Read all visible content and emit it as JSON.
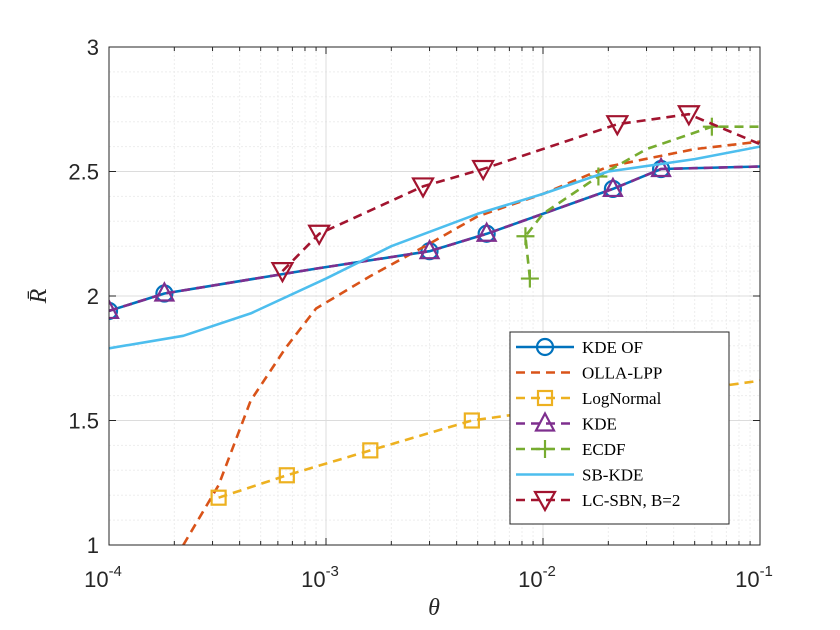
{
  "chart_data": {
    "type": "line",
    "xscale": "log",
    "xlabel": "θ",
    "ylabel": "R̄",
    "xlim": [
      0.0001,
      0.1
    ],
    "ylim": [
      1,
      3
    ],
    "grid": "on",
    "legend_position": "bottom-right",
    "x_tick_labels": [
      {
        "value": 0.0001,
        "base": "10",
        "exponent": "-4"
      },
      {
        "value": 0.001,
        "base": "10",
        "exponent": "-3"
      },
      {
        "value": 0.01,
        "base": "10",
        "exponent": "-2"
      },
      {
        "value": 0.1,
        "base": "10",
        "exponent": "-1"
      }
    ],
    "y_tick_labels": [
      {
        "value": 1,
        "label": "1"
      },
      {
        "value": 1.5,
        "label": "1.5"
      },
      {
        "value": 2,
        "label": "2"
      },
      {
        "value": 2.5,
        "label": "2.5"
      },
      {
        "value": 3,
        "label": "3"
      }
    ],
    "series": [
      {
        "name": "KDE OF",
        "color": "#0072BD",
        "marker": "circle",
        "dash": "solid",
        "line_x": [
          0.0001,
          0.00018,
          0.0009,
          0.003,
          0.0055,
          0.021,
          0.035,
          0.1
        ],
        "line_y": [
          1.94,
          2.01,
          2.11,
          2.18,
          2.25,
          2.43,
          2.51,
          2.52
        ],
        "marker_x": [
          0.0001,
          0.00018,
          0.003,
          0.0055,
          0.021,
          0.035
        ],
        "marker_y": [
          1.94,
          2.01,
          2.18,
          2.25,
          2.43,
          2.51
        ]
      },
      {
        "name": "OLLA-LPP",
        "color": "#D95319",
        "marker": "none",
        "dash": "dashed",
        "line_x": [
          0.00022,
          0.00032,
          0.00045,
          0.00065,
          0.0009,
          0.0016,
          0.003,
          0.005,
          0.01,
          0.02,
          0.05,
          0.1
        ],
        "line_y": [
          1.0,
          1.24,
          1.58,
          1.79,
          1.95,
          2.08,
          2.21,
          2.32,
          2.41,
          2.52,
          2.59,
          2.62
        ],
        "marker_x": [],
        "marker_y": []
      },
      {
        "name": "LogNormal",
        "color": "#EDB120",
        "marker": "square",
        "dash": "dashed",
        "line_x": [
          0.00032,
          0.00066,
          0.0016,
          0.0047,
          0.1
        ],
        "line_y": [
          1.19,
          1.28,
          1.38,
          1.5,
          1.66
        ],
        "marker_x": [
          0.00032,
          0.00066,
          0.0016,
          0.0047
        ],
        "marker_y": [
          1.19,
          1.28,
          1.38,
          1.5
        ]
      },
      {
        "name": "KDE",
        "color": "#7E2F8E",
        "marker": "triangle-up",
        "dash": "dashed",
        "line_x": [
          0.0001,
          0.00018,
          0.0009,
          0.003,
          0.0055,
          0.021,
          0.035,
          0.1
        ],
        "line_y": [
          1.94,
          2.01,
          2.11,
          2.18,
          2.25,
          2.43,
          2.51,
          2.52
        ],
        "marker_x": [
          0.0001,
          0.00018,
          0.003,
          0.0055,
          0.021,
          0.035
        ],
        "marker_y": [
          1.94,
          2.01,
          2.18,
          2.25,
          2.43,
          2.51
        ]
      },
      {
        "name": "ECDF",
        "color": "#77AC30",
        "marker": "plus",
        "dash": "dashed",
        "line_x": [
          0.0087,
          0.0083,
          0.01,
          0.018,
          0.03,
          0.06,
          0.1
        ],
        "line_y": [
          2.07,
          2.24,
          2.33,
          2.48,
          2.59,
          2.68,
          2.68
        ],
        "marker_x": [
          0.0087,
          0.0083,
          0.018,
          0.06
        ],
        "marker_y": [
          2.07,
          2.24,
          2.48,
          2.68
        ]
      },
      {
        "name": "SB-KDE",
        "color": "#4DBEEE",
        "marker": "none",
        "dash": "solid",
        "line_x": [
          0.0001,
          0.00022,
          0.00045,
          0.001,
          0.002,
          0.005,
          0.01,
          0.02,
          0.05,
          0.1
        ],
        "line_y": [
          1.79,
          1.84,
          1.93,
          2.07,
          2.2,
          2.33,
          2.41,
          2.5,
          2.55,
          2.6
        ],
        "marker_x": [],
        "marker_y": []
      },
      {
        "name": "LC-SBN, B=2",
        "color": "#A2142F",
        "marker": "triangle-down",
        "dash": "dashed",
        "line_x": [
          0.00063,
          0.00093,
          0.0028,
          0.0053,
          0.022,
          0.047,
          0.1
        ],
        "line_y": [
          2.1,
          2.25,
          2.44,
          2.51,
          2.69,
          2.73,
          2.61
        ],
        "marker_x": [
          0.00063,
          0.00093,
          0.0028,
          0.0053,
          0.022,
          0.047
        ],
        "marker_y": [
          2.1,
          2.25,
          2.44,
          2.51,
          2.69,
          2.73
        ]
      }
    ]
  }
}
